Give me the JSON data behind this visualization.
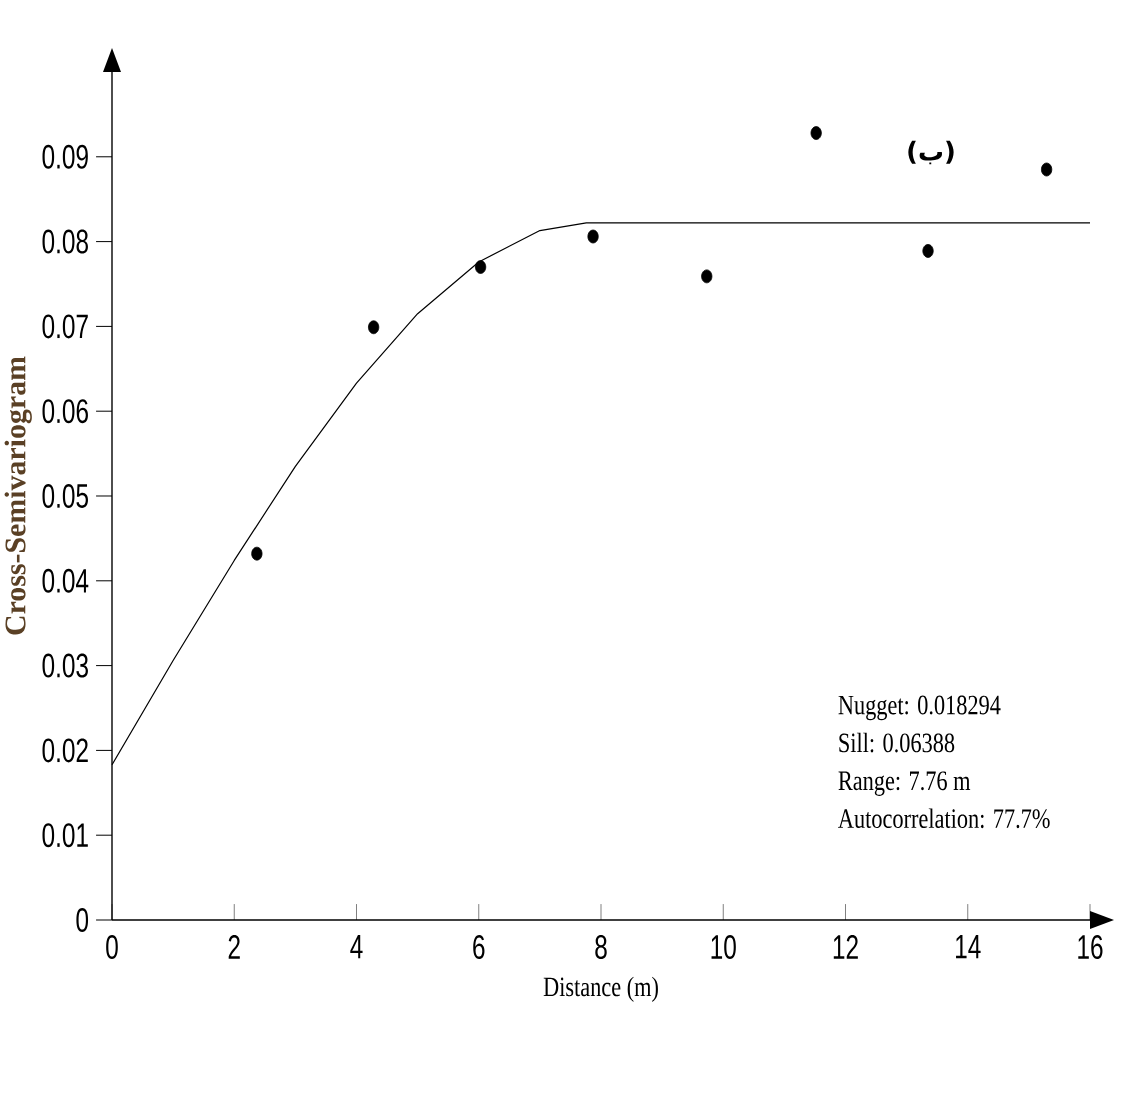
{
  "chart_data": {
    "type": "scatter",
    "xlabel": "Distance (m)",
    "ylabel": "Cross-Semivariogram",
    "xlim": [
      0,
      16
    ],
    "ylim": [
      0,
      0.1
    ],
    "xticks": [
      0,
      2,
      4,
      6,
      8,
      10,
      12,
      14,
      16
    ],
    "yticks": [
      0,
      0.01,
      0.02,
      0.03,
      0.04,
      0.05,
      0.06,
      0.07,
      0.08,
      0.09
    ],
    "series": [
      {
        "color": "#000000",
        "marker": "circle",
        "x": [
          2.37,
          4.28,
          6.03,
          7.87,
          9.73,
          11.52,
          13.35,
          15.29
        ],
        "values": [
          0.0432,
          0.0699,
          0.077,
          0.0806,
          0.0759,
          0.0928,
          0.0789,
          0.0885
        ]
      },
      {
        "type": "line",
        "color": "#000000",
        "marker": "none",
        "x": [
          0,
          1,
          2,
          3,
          4,
          5,
          6,
          7,
          7.76,
          16
        ],
        "values": [
          0.0183,
          0.0306,
          0.0424,
          0.0535,
          0.0633,
          0.0715,
          0.0776,
          0.0813,
          0.0822,
          0.0822
        ]
      }
    ],
    "annotations": [
      "(ب)",
      "Nugget: 0.018294",
      "Sill: 0.06388",
      "Range: 7.76 m",
      "Autocorrelation: 77.7%"
    ]
  }
}
